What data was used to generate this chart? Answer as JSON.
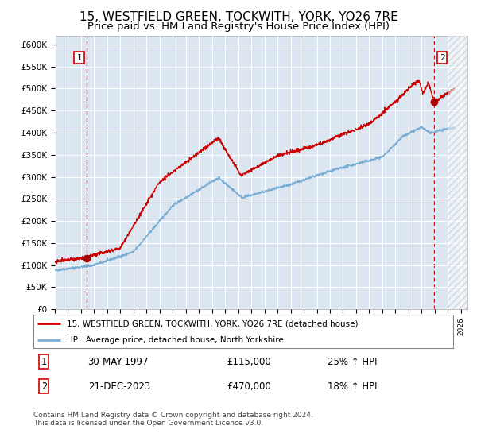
{
  "title": "15, WESTFIELD GREEN, TOCKWITH, YORK, YO26 7RE",
  "subtitle": "Price paid vs. HM Land Registry's House Price Index (HPI)",
  "title_fontsize": 11,
  "subtitle_fontsize": 9.5,
  "bg_color": "#dce6f1",
  "grid_color": "#ffffff",
  "line1_color": "#cc0000",
  "line2_color": "#7aadd4",
  "marker_color": "#aa0000",
  "sale1_date_num": 1997.41,
  "sale1_price": 115000,
  "sale2_date_num": 2023.97,
  "sale2_price": 470000,
  "ylim": [
    0,
    620000
  ],
  "xlim": [
    1995.0,
    2026.5
  ],
  "yticks": [
    0,
    50000,
    100000,
    150000,
    200000,
    250000,
    300000,
    350000,
    400000,
    450000,
    500000,
    550000,
    600000
  ],
  "xticks": [
    1995,
    1996,
    1997,
    1998,
    1999,
    2000,
    2001,
    2002,
    2003,
    2004,
    2005,
    2006,
    2007,
    2008,
    2009,
    2010,
    2011,
    2012,
    2013,
    2014,
    2015,
    2016,
    2017,
    2018,
    2019,
    2020,
    2021,
    2022,
    2023,
    2024,
    2025,
    2026
  ],
  "legend_label1": "15, WESTFIELD GREEN, TOCKWITH, YORK, YO26 7RE (detached house)",
  "legend_label2": "HPI: Average price, detached house, North Yorkshire",
  "note1_date": "30-MAY-1997",
  "note1_price": "£115,000",
  "note1_hpi": "25% ↑ HPI",
  "note2_date": "21-DEC-2023",
  "note2_price": "£470,000",
  "note2_hpi": "18% ↑ HPI",
  "footer": "Contains HM Land Registry data © Crown copyright and database right 2024.\nThis data is licensed under the Open Government Licence v3.0.",
  "vline_color": "#cc0000",
  "hatch_start": 2025.0
}
